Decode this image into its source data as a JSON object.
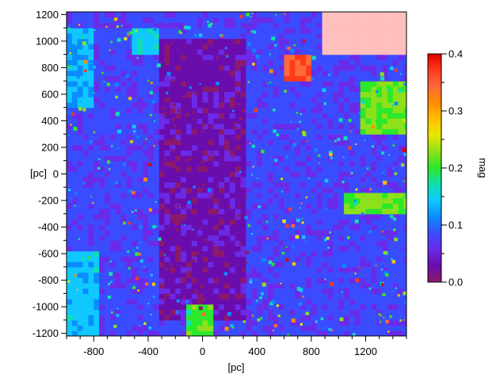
{
  "chart_data": {
    "type": "heatmap",
    "title": "",
    "xlabel": "[pc]",
    "ylabel": "[pc]",
    "xlim": [
      -1000,
      1500
    ],
    "ylim": [
      -1220,
      1220
    ],
    "x_ticks": [
      -800,
      -400,
      0,
      400,
      800,
      1200
    ],
    "y_ticks": [
      -1200,
      -1000,
      -800,
      -600,
      -400,
      -200,
      0,
      200,
      400,
      600,
      800,
      1000,
      1200
    ],
    "colorbar": {
      "label": "mag",
      "range": [
        0.0,
        0.4
      ],
      "ticks": [
        0.0,
        0.1,
        0.2,
        0.3,
        0.4
      ],
      "colors": [
        "#8b1a6b",
        "#6a0dad",
        "#6a2be8",
        "#3b4cff",
        "#0a8cff",
        "#10c8ff",
        "#10e0b0",
        "#2be82b",
        "#8ee01a",
        "#e8e800",
        "#ffc000",
        "#ff8c00",
        "#ff6a3a",
        "#ff3a1a",
        "#e00000"
      ],
      "nodata_color": "#ffbfbf"
    },
    "regions": [
      {
        "x": [
          -140,
          100
        ],
        "y": [
          -400,
          500
        ],
        "value": 0.0
      },
      {
        "x": [
          -320,
          330
        ],
        "y": [
          -1100,
          1000
        ],
        "value": 0.03
      },
      {
        "x": [
          -1000,
          -500
        ],
        "y": [
          -1220,
          1220
        ],
        "value": 0.08
      },
      {
        "x": [
          1050,
          1500
        ],
        "y": [
          -300,
          -150
        ],
        "value": 0.22
      },
      {
        "x": [
          1150,
          1500
        ],
        "y": [
          300,
          700
        ],
        "value": 0.22
      },
      {
        "x": [
          -1000,
          -780
        ],
        "y": [
          -1220,
          -600
        ],
        "value": 0.14
      },
      {
        "x": [
          -1000,
          -800
        ],
        "y": [
          500,
          1100
        ],
        "value": 0.13
      },
      {
        "x": [
          -520,
          -340
        ],
        "y": [
          900,
          1100
        ],
        "value": 0.15
      },
      {
        "x": [
          -120,
          60
        ],
        "y": [
          -1220,
          -1000
        ],
        "value": 0.2
      },
      {
        "x": [
          620,
          780
        ],
        "y": [
          700,
          900
        ],
        "value": 0.36
      },
      {
        "x": [
          900,
          1500
        ],
        "y": [
          900,
          1220
        ],
        "value": "no data"
      }
    ]
  }
}
